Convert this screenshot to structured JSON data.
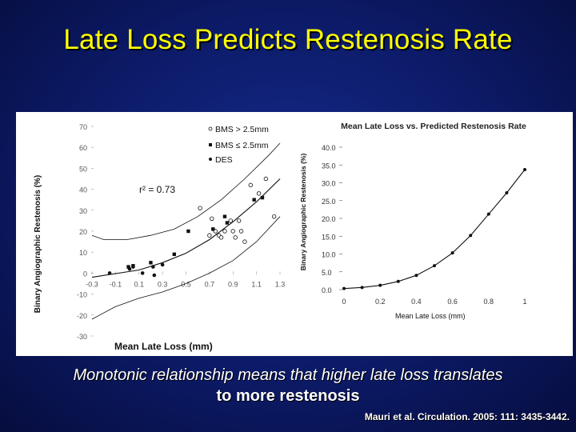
{
  "slide": {
    "title": "Late Loss Predicts Restenosis Rate",
    "caption_line1": "Monotonic relationship means that higher late loss translates",
    "caption_line2": "to more restenosis",
    "citation": "Mauri et al. Circulation. 2005: 111: 3435-3442."
  },
  "chart_data": [
    {
      "type": "scatter",
      "title": "",
      "xlabel": "Mean Late Loss (mm)",
      "ylabel": "Binary Angiographic Restenosis (%)",
      "xlim": [
        -0.3,
        1.3
      ],
      "ylim": [
        -30,
        70
      ],
      "x_ticks": [
        "-0.3",
        "-0.1",
        "0.1",
        "0.3",
        "0.5",
        "0.7",
        "0.9",
        "1.1",
        "1.3"
      ],
      "y_ticks": [
        "70",
        "60",
        "50",
        "40",
        "30",
        "20",
        "10",
        "0",
        "-10",
        "-20",
        "-30"
      ],
      "annotation": "r² = 0.73",
      "legend_position": "top-right",
      "legend": [
        {
          "marker": "open-circle",
          "label": "BMS > 2.5mm"
        },
        {
          "marker": "filled-square",
          "label": "BMS ≤ 2.5mm"
        },
        {
          "marker": "filled-circle",
          "label": "DES"
        }
      ],
      "series": [
        {
          "name": "BMS > 2.5mm",
          "marker": "open-circle",
          "points": [
            [
              0.62,
              31
            ],
            [
              0.72,
              26
            ],
            [
              0.75,
              20
            ],
            [
              0.78,
              18
            ],
            [
              0.8,
              17
            ],
            [
              0.83,
              20
            ],
            [
              0.88,
              25
            ],
            [
              0.9,
              20
            ],
            [
              0.92,
              17
            ],
            [
              0.95,
              25
            ],
            [
              0.97,
              20
            ],
            [
              1.0,
              15
            ],
            [
              1.05,
              42
            ],
            [
              1.12,
              38
            ],
            [
              1.18,
              45
            ],
            [
              1.25,
              27
            ],
            [
              0.7,
              18
            ]
          ]
        },
        {
          "name": "BMS ≤ 2.5mm",
          "marker": "filled-square",
          "points": [
            [
              0.01,
              3
            ],
            [
              0.05,
              3.5
            ],
            [
              0.2,
              5
            ],
            [
              0.4,
              9
            ],
            [
              0.52,
              20
            ],
            [
              0.73,
              21
            ],
            [
              0.83,
              27
            ],
            [
              0.85,
              24
            ],
            [
              1.08,
              35
            ],
            [
              1.15,
              36
            ]
          ]
        },
        {
          "name": "DES",
          "marker": "filled-circle",
          "points": [
            [
              -0.15,
              0
            ],
            [
              0.02,
              2
            ],
            [
              0.05,
              3
            ],
            [
              0.13,
              0
            ],
            [
              0.22,
              3
            ],
            [
              0.23,
              -1
            ],
            [
              0.3,
              4
            ]
          ]
        }
      ],
      "fit_lines": [
        {
          "label": "fit",
          "points": [
            [
              -0.3,
              -2
            ],
            [
              0.1,
              1.5
            ],
            [
              0.3,
              5
            ],
            [
              0.5,
              9.5
            ],
            [
              0.7,
              16
            ],
            [
              0.9,
              24.5
            ],
            [
              1.1,
              34
            ],
            [
              1.3,
              45
            ]
          ]
        },
        {
          "label": "upper-ci",
          "points": [
            [
              -0.3,
              18
            ],
            [
              -0.2,
              16
            ],
            [
              0.0,
              16
            ],
            [
              0.2,
              18
            ],
            [
              0.4,
              21
            ],
            [
              0.6,
              27
            ],
            [
              0.8,
              35
            ],
            [
              1.0,
              45
            ],
            [
              1.2,
              56
            ],
            [
              1.3,
              62
            ]
          ]
        },
        {
          "label": "lower-ci",
          "points": [
            [
              -0.3,
              -22
            ],
            [
              -0.1,
              -16
            ],
            [
              0.1,
              -12
            ],
            [
              0.3,
              -9
            ],
            [
              0.5,
              -5
            ],
            [
              0.7,
              0
            ],
            [
              0.9,
              6
            ],
            [
              1.1,
              15
            ],
            [
              1.3,
              27
            ]
          ]
        }
      ]
    },
    {
      "type": "line",
      "title": "Mean Late Loss vs. Predicted Restenosis Rate",
      "xlabel": "Mean Late Loss (mm)",
      "ylabel": "Binary Angiographic Restenosis (%)",
      "xlim": [
        0,
        1
      ],
      "ylim": [
        0,
        40
      ],
      "x_ticks": [
        "0",
        "0.2",
        "0.4",
        "0.6",
        "0.8",
        "1"
      ],
      "y_ticks": [
        "0.0",
        "5.0",
        "10.0",
        "15.0",
        "20.0",
        "25.0",
        "30.0",
        "35.0",
        "40.0"
      ],
      "series": [
        {
          "x": [
            0,
            0.1,
            0.2,
            0.3,
            0.4,
            0.5,
            0.6,
            0.7,
            0.8,
            0.9,
            1.0
          ],
          "y": [
            0.3,
            0.6,
            1.2,
            2.3,
            4.0,
            6.7,
            10.3,
            15.2,
            21.2,
            27.2,
            33.7
          ]
        }
      ]
    }
  ]
}
